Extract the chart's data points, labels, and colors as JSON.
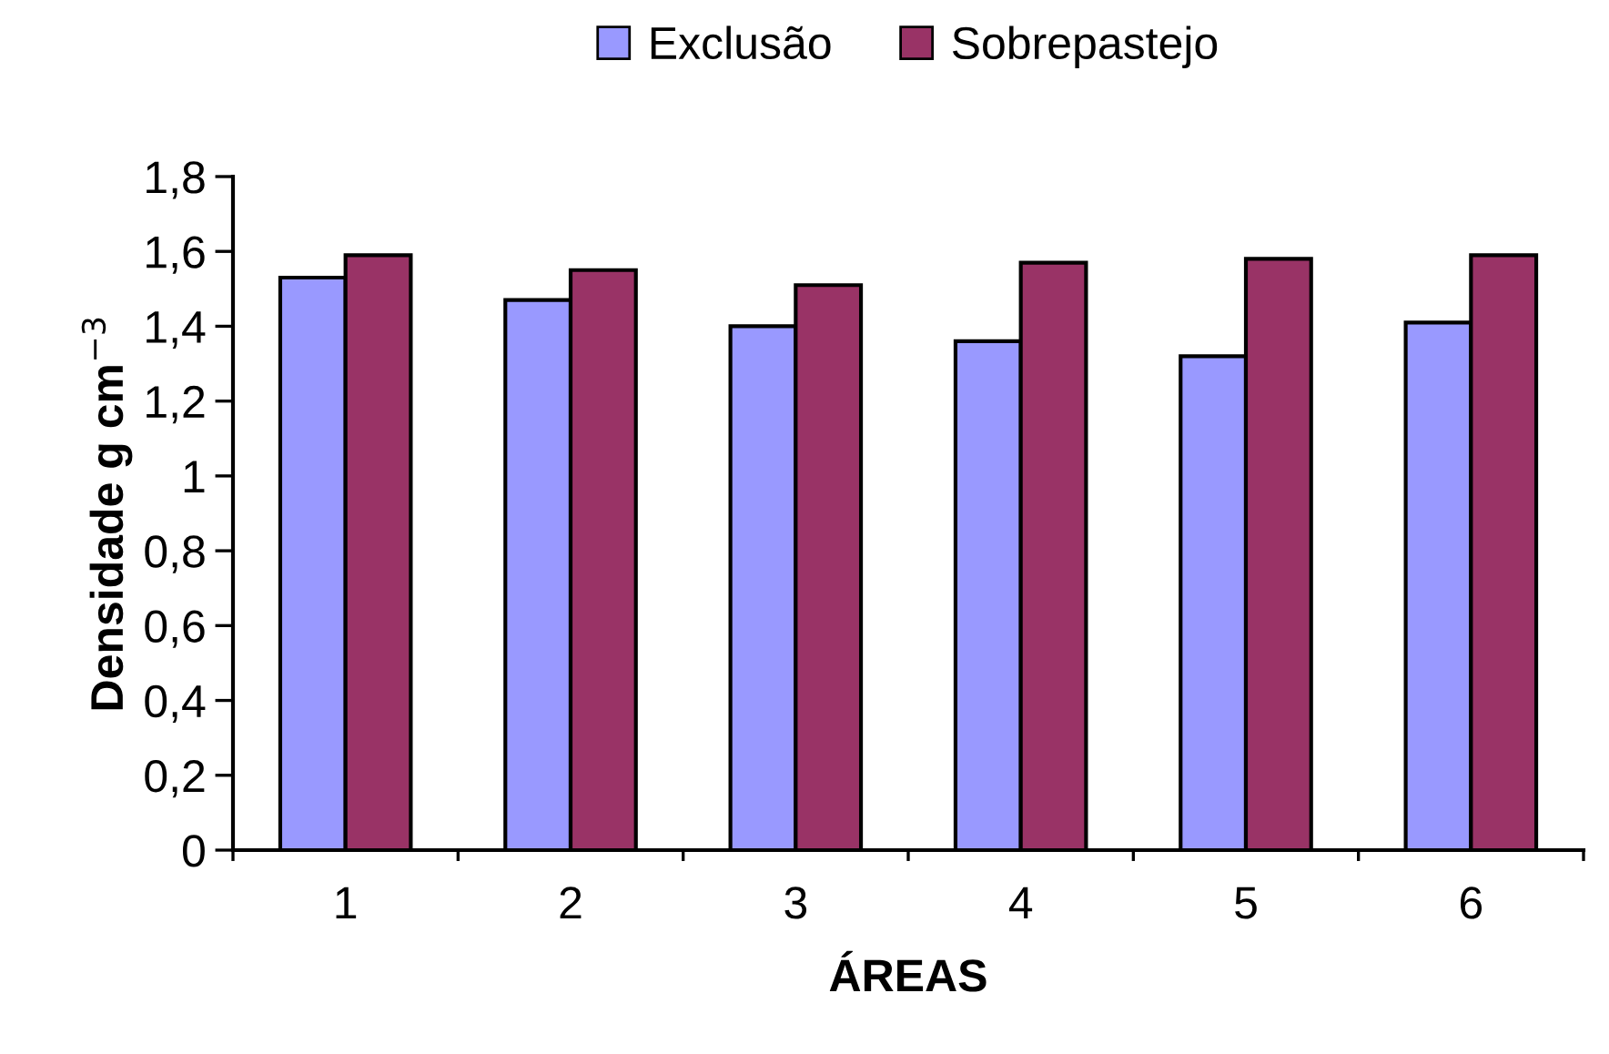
{
  "chart_data": {
    "type": "bar",
    "xlabel": "ÁREAS",
    "ylabel": "Densidade g cm$^{−3}$",
    "categories": [
      "1",
      "2",
      "3",
      "4",
      "5",
      "6"
    ],
    "series": [
      {
        "name": "Exclusão",
        "color": "#9999ff",
        "values": [
          1.53,
          1.47,
          1.4,
          1.36,
          1.32,
          1.41
        ]
      },
      {
        "name": "Sobrepastejo",
        "color": "#993366",
        "values": [
          1.59,
          1.55,
          1.51,
          1.57,
          1.58,
          1.59
        ]
      }
    ],
    "ylim": [
      0,
      1.8
    ],
    "yticks": [
      0,
      {
        "value": 0.2,
        "label": "0,2"
      },
      {
        "value": 0.4,
        "label": "0,4"
      },
      {
        "value": 0.6,
        "label": "0,6"
      },
      {
        "value": 0.8,
        "label": "0,8"
      },
      1,
      {
        "value": 1.2,
        "label": "1,2"
      },
      {
        "value": 1.4,
        "label": "1,4"
      },
      {
        "value": 1.6,
        "label": "1,6"
      },
      {
        "value": 1.8,
        "label": "1,8"
      }
    ],
    "grid": false,
    "legend": "top"
  }
}
